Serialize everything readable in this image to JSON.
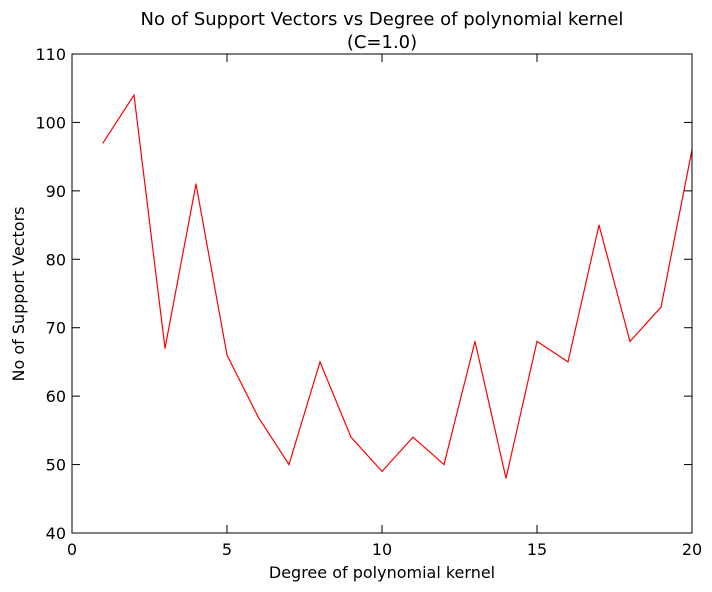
{
  "chart_data": {
    "type": "line",
    "title": "No of Support Vectors vs Degree of polynomial kernel",
    "subtitle": "(C=1.0)",
    "xlabel": "Degree of polynomial kernel",
    "ylabel": "No of Support Vectors",
    "xlim": [
      0,
      20
    ],
    "ylim": [
      40,
      110
    ],
    "xticks": [
      0,
      5,
      10,
      15,
      20
    ],
    "yticks": [
      40,
      50,
      60,
      70,
      80,
      90,
      100,
      110
    ],
    "grid": false,
    "series": [
      {
        "color": "#ff0000",
        "x": [
          1,
          2,
          3,
          4,
          5,
          6,
          7,
          8,
          9,
          10,
          11,
          12,
          13,
          14,
          15,
          16,
          17,
          18,
          19,
          20
        ],
        "y": [
          97,
          104,
          67,
          91,
          66,
          57,
          50,
          65,
          54,
          49,
          54,
          50,
          68,
          48,
          68,
          65,
          85,
          68,
          73,
          96
        ]
      }
    ]
  }
}
